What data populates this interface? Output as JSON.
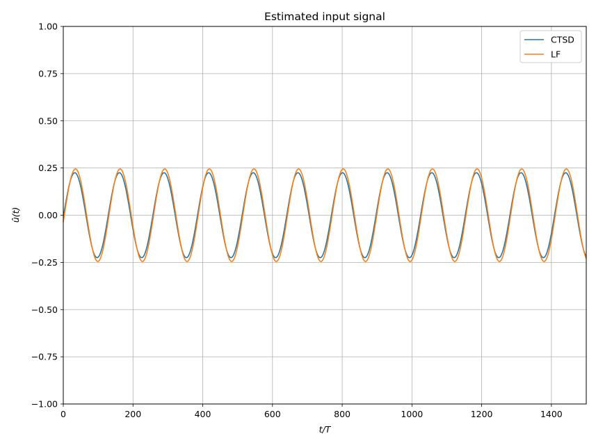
{
  "chart_data": {
    "type": "line",
    "title": "Estimated input signal",
    "xlabel": "t/T",
    "ylabel": "û(t)",
    "xlim": [
      0,
      1500
    ],
    "ylim": [
      -1.0,
      1.0
    ],
    "xticks": [
      0,
      200,
      400,
      600,
      800,
      1000,
      1200,
      1400
    ],
    "xtick_labels": [
      "0",
      "200",
      "400",
      "600",
      "800",
      "1000",
      "1200",
      "1400"
    ],
    "yticks": [
      -1.0,
      -0.75,
      -0.5,
      -0.25,
      0.0,
      0.25,
      0.5,
      0.75,
      1.0
    ],
    "ytick_labels": [
      "−1.00",
      "−0.75",
      "−0.50",
      "−0.25",
      "0.00",
      "0.25",
      "0.50",
      "0.75",
      "1.00"
    ],
    "grid": true,
    "legend_position": "top-right",
    "series": [
      {
        "name": "CTSD",
        "color": "#1f77b4",
        "amplitude": 0.225,
        "period": 128,
        "phase_delay": 1
      },
      {
        "name": "LF",
        "color": "#ff7f0e",
        "amplitude": 0.245,
        "period": 128,
        "phase_delay": 3
      }
    ]
  }
}
